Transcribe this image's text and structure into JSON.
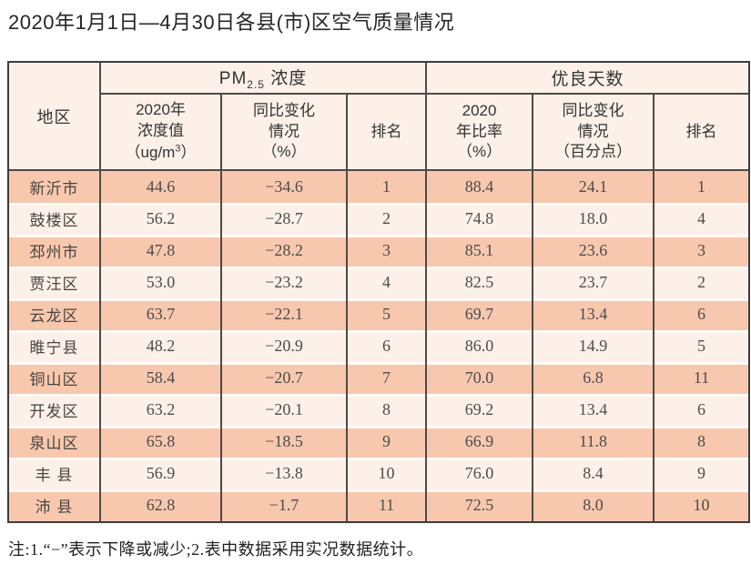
{
  "title": "2020年1月1日—4月30日各县(市)区空气质量情况",
  "table": {
    "region_header": "地区",
    "pm_group": {
      "prefix": "PM",
      "sub": "2.5",
      "suffix": " 浓度"
    },
    "days_group": "优良天数",
    "sub_headers": {
      "pm_value": {
        "l1": "2020年",
        "l2": "浓度值",
        "unit_pre": "（ug/m",
        "unit_sup": "3",
        "unit_post": "）"
      },
      "pm_change": {
        "l1": "同比变化",
        "l2": "情况",
        "l3": "（%）"
      },
      "pm_rank": "排名",
      "days_ratio": {
        "l1": "2020",
        "l2": "年比率",
        "l3": "（%）"
      },
      "days_change": {
        "l1": "同比变化",
        "l2": "情况",
        "l3": "（百分点）"
      },
      "days_rank": "排名"
    },
    "rows": [
      {
        "region": "新沂市",
        "pm_value": "44.6",
        "pm_change": "−34.6",
        "pm_rank": "1",
        "days_ratio": "88.4",
        "days_change": "24.1",
        "days_rank": "1"
      },
      {
        "region": "鼓楼区",
        "pm_value": "56.2",
        "pm_change": "−28.7",
        "pm_rank": "2",
        "days_ratio": "74.8",
        "days_change": "18.0",
        "days_rank": "4"
      },
      {
        "region": "邳州市",
        "pm_value": "47.8",
        "pm_change": "−28.2",
        "pm_rank": "3",
        "days_ratio": "85.1",
        "days_change": "23.6",
        "days_rank": "3"
      },
      {
        "region": "贾汪区",
        "pm_value": "53.0",
        "pm_change": "−23.2",
        "pm_rank": "4",
        "days_ratio": "82.5",
        "days_change": "23.7",
        "days_rank": "2"
      },
      {
        "region": "云龙区",
        "pm_value": "63.7",
        "pm_change": "−22.1",
        "pm_rank": "5",
        "days_ratio": "69.7",
        "days_change": "13.4",
        "days_rank": "6"
      },
      {
        "region": "睢宁县",
        "pm_value": "48.2",
        "pm_change": "−20.9",
        "pm_rank": "6",
        "days_ratio": "86.0",
        "days_change": "14.9",
        "days_rank": "5"
      },
      {
        "region": "铜山区",
        "pm_value": "58.4",
        "pm_change": "−20.7",
        "pm_rank": "7",
        "days_ratio": "70.0",
        "days_change": "6.8",
        "days_rank": "11"
      },
      {
        "region": "开发区",
        "pm_value": "63.2",
        "pm_change": "−20.1",
        "pm_rank": "8",
        "days_ratio": "69.2",
        "days_change": "13.4",
        "days_rank": "6"
      },
      {
        "region": "泉山区",
        "pm_value": "65.8",
        "pm_change": "−18.5",
        "pm_rank": "9",
        "days_ratio": "66.9",
        "days_change": "11.8",
        "days_rank": "8"
      },
      {
        "region": "丰 县",
        "pm_value": "56.9",
        "pm_change": "−13.8",
        "pm_rank": "10",
        "days_ratio": "76.0",
        "days_change": "8.4",
        "days_rank": "9"
      },
      {
        "region": "沛 县",
        "pm_value": "62.8",
        "pm_change": "−1.7",
        "pm_rank": "11",
        "days_ratio": "72.5",
        "days_change": "8.0",
        "days_rank": "10"
      }
    ]
  },
  "note": "注:1.“−”表示下降或减少;2.表中数据采用实况数据统计。",
  "colors": {
    "row_odd": "#f8c8ae",
    "row_even": "#fcf0e8",
    "header_bg": "#fcf0e8",
    "border": "#4e4a47",
    "row_separator": "#fffaf6"
  }
}
